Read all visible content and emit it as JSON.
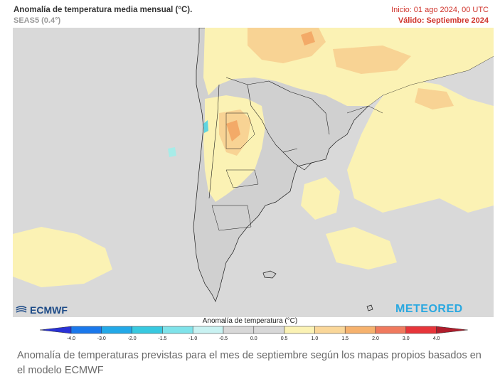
{
  "header": {
    "title": "Anomalía de temperatura media mensual (°C).",
    "model": "SEAS5 (0.4°)",
    "init": "Inicio: 01 ago 2024, 00 UTC",
    "valid": "Válido: Septiembre 2024"
  },
  "logos": {
    "left": "ECMWF",
    "right": "METEORED"
  },
  "legend": {
    "title": "Anomalía de temperatura (°C)",
    "ticks": [
      "-4.0",
      "-3.0",
      "-2.0",
      "-1.5",
      "-1.0",
      "-0.5",
      "0.0",
      "0.5",
      "1.0",
      "1.5",
      "2.0",
      "3.0",
      "4.0"
    ],
    "colors": [
      "#2a32d6",
      "#1a78ec",
      "#23a9e8",
      "#38c9e0",
      "#7fe3ea",
      "#c9f2f2",
      "#d8d8d8",
      "#d8d8d8",
      "#fbf2b4",
      "#fad799",
      "#f6b26e",
      "#f07a5e",
      "#e7353a",
      "#b01d2c"
    ]
  },
  "caption": "Anomalía de temperaturas previstas para el mes de septiembre según los mapas propios basados en el modelo ECMWF"
}
